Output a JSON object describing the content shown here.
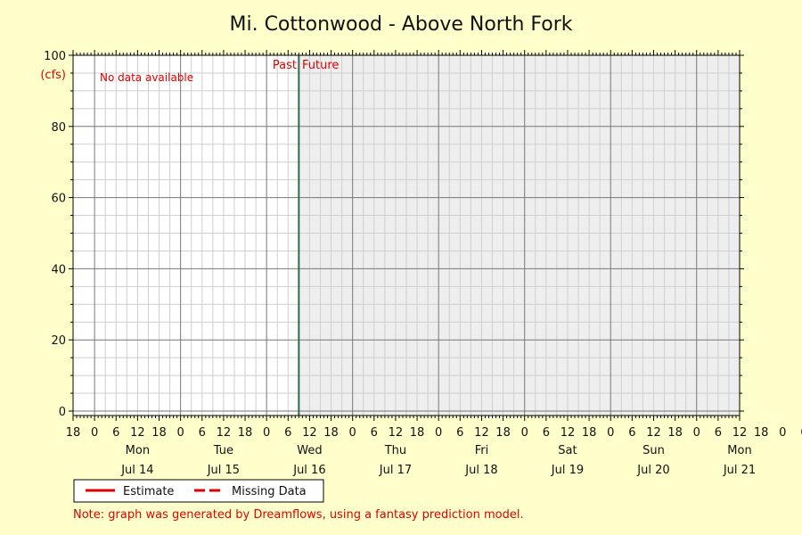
{
  "chart_data": {
    "type": "line",
    "title": "Mi. Cottonwood - Above North Fork",
    "ylabel": "(cfs)",
    "ylim": [
      0,
      100
    ],
    "yticks": [
      0,
      20,
      40,
      60,
      80,
      100
    ],
    "xlim_hours": [
      -6,
      180
    ],
    "x_hour_ticks": [
      "18",
      "0",
      "6",
      "12",
      "18",
      "0",
      "6",
      "12",
      "18",
      "0",
      "6",
      "12",
      "18",
      "0",
      "6",
      "12",
      "18",
      "0",
      "6",
      "12",
      "18",
      "0",
      "6",
      "12",
      "18",
      "0",
      "6",
      "12",
      "18",
      "0",
      "6",
      "12",
      "18",
      "0",
      "6",
      "12"
    ],
    "days": [
      {
        "weekday": "Mon",
        "date": "Jul 14"
      },
      {
        "weekday": "Tue",
        "date": "Jul 15"
      },
      {
        "weekday": "Wed",
        "date": "Jul 16"
      },
      {
        "weekday": "Thu",
        "date": "Jul 17"
      },
      {
        "weekday": "Fri",
        "date": "Jul 18"
      },
      {
        "weekday": "Sat",
        "date": "Jul 19"
      },
      {
        "weekday": "Sun",
        "date": "Jul 20"
      },
      {
        "weekday": "Mon",
        "date": "Jul 21"
      }
    ],
    "now_hour": 57,
    "past_label": "Past",
    "future_label": "Future",
    "no_data_text": "No data available",
    "series": [],
    "grid": true,
    "legend": {
      "placement": "bottom-left",
      "items": [
        {
          "label": "Estimate",
          "style": "solid",
          "color": "#e00000"
        },
        {
          "label": "Missing Data",
          "style": "dashed",
          "color": "#e00000"
        }
      ]
    },
    "note": "Note: graph was generated by Dreamflows, using a fantasy prediction model."
  },
  "colors": {
    "background": "#ffffcc",
    "plot_past": "#ffffff",
    "plot_future": "#eeeeee",
    "now_line": "#2e6b4f",
    "accent": "#e00000"
  }
}
